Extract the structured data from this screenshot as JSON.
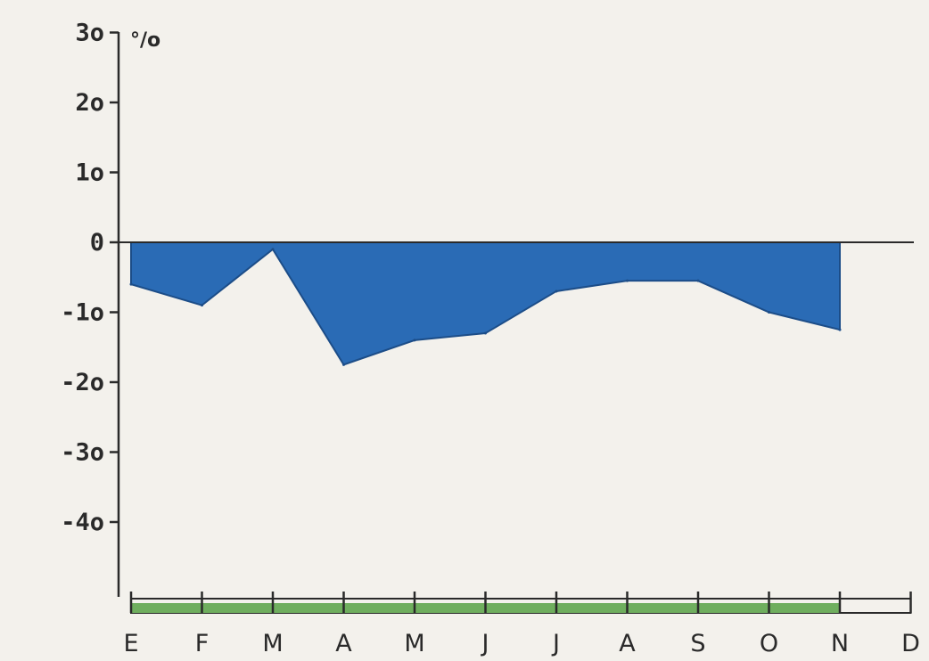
{
  "chart_data": {
    "type": "area",
    "unit_label": "°/o",
    "y_ticks": [
      {
        "value": 30,
        "label": "3o"
      },
      {
        "value": 20,
        "label": "2o"
      },
      {
        "value": 10,
        "label": "1o"
      },
      {
        "value": 0,
        "label": "0"
      },
      {
        "value": -10,
        "label": "-1o"
      },
      {
        "value": -20,
        "label": "-2o"
      },
      {
        "value": -30,
        "label": "-3o"
      },
      {
        "value": -40,
        "label": "-4o"
      }
    ],
    "ylim": [
      -46,
      30
    ],
    "categories": [
      "E",
      "F",
      "M",
      "A",
      "M",
      "J",
      "J",
      "A",
      "S",
      "O",
      "N",
      "D"
    ],
    "series": [
      {
        "x": [
          0,
          1,
          2,
          3,
          4,
          5,
          6,
          7,
          8,
          9,
          10
        ],
        "values": [
          -6,
          -9,
          -1,
          -17.5,
          -14,
          -13,
          -7,
          -5.5,
          -5.5,
          -10,
          -12.5
        ]
      }
    ],
    "season_bar": {
      "from": "E",
      "to": "N"
    },
    "colors": {
      "area": "#2a6bb5",
      "area_edge": "#1c4d88",
      "season_bar": "#6fae5e",
      "axis": "#2a2a2a",
      "background": "#f3f1ec"
    }
  }
}
